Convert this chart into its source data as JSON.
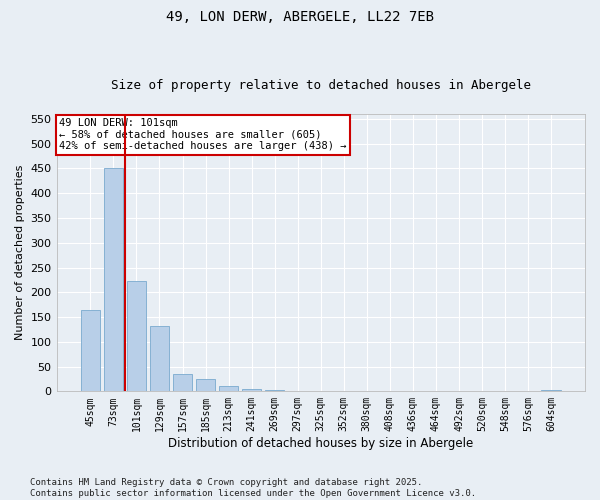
{
  "title": "49, LON DERW, ABERGELE, LL22 7EB",
  "subtitle": "Size of property relative to detached houses in Abergele",
  "xlabel": "Distribution of detached houses by size in Abergele",
  "ylabel": "Number of detached properties",
  "categories": [
    "45sqm",
    "73sqm",
    "101sqm",
    "129sqm",
    "157sqm",
    "185sqm",
    "213sqm",
    "241sqm",
    "269sqm",
    "297sqm",
    "325sqm",
    "352sqm",
    "380sqm",
    "408sqm",
    "436sqm",
    "464sqm",
    "492sqm",
    "520sqm",
    "548sqm",
    "576sqm",
    "604sqm"
  ],
  "values": [
    165,
    450,
    222,
    131,
    36,
    25,
    10,
    5,
    2,
    1,
    0,
    0,
    0,
    1,
    0,
    0,
    0,
    0,
    0,
    0,
    2
  ],
  "bar_color": "#b8cfe8",
  "bar_edge_color": "#7aaacf",
  "vline_x_index": 2,
  "vline_color": "#cc0000",
  "annotation_text": "49 LON DERW: 101sqm\n← 58% of detached houses are smaller (605)\n42% of semi-detached houses are larger (438) →",
  "annotation_box_color": "#ffffff",
  "annotation_box_edge_color": "#cc0000",
  "ylim": [
    0,
    560
  ],
  "yticks": [
    0,
    50,
    100,
    150,
    200,
    250,
    300,
    350,
    400,
    450,
    500,
    550
  ],
  "footer_text": "Contains HM Land Registry data © Crown copyright and database right 2025.\nContains public sector information licensed under the Open Government Licence v3.0.",
  "bg_color": "#e8eef4",
  "plot_bg_color": "#e8eef4",
  "grid_color": "#ffffff",
  "title_fontsize": 10,
  "subtitle_fontsize": 9,
  "footer_fontsize": 6.5
}
